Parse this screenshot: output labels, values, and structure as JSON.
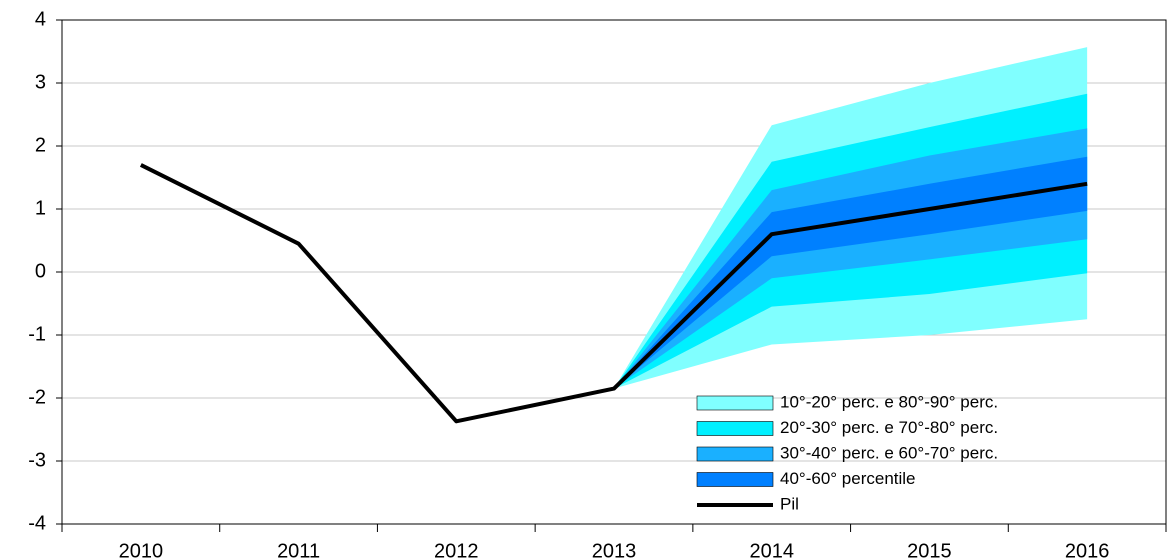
{
  "chart_data": {
    "type": "fan",
    "categories": [
      "2010",
      "2011",
      "2012",
      "2013",
      "2014",
      "2015",
      "2016"
    ],
    "ylim": [
      -4,
      4
    ],
    "yticks": [
      -4,
      -3,
      -2,
      -1,
      0,
      1,
      2,
      3,
      4
    ],
    "grid": true,
    "legend": "lower right",
    "series": [
      {
        "name": "10°-20° perc. e 80°-90° perc.",
        "color": "#80ffff",
        "kind": "band",
        "lower": [
          null,
          null,
          null,
          -1.85,
          -1.15,
          -1.0,
          -0.75
        ],
        "upper": [
          null,
          null,
          null,
          -1.85,
          2.33,
          3.0,
          3.57
        ]
      },
      {
        "name": "20°-30° perc. e 70°-80° perc.",
        "color": "#00f0ff",
        "kind": "band",
        "lower": [
          null,
          null,
          null,
          -1.85,
          -0.55,
          -0.35,
          -0.02
        ],
        "upper": [
          null,
          null,
          null,
          -1.85,
          1.75,
          2.3,
          2.83
        ]
      },
      {
        "name": "30°-40° perc. e 60°-70° perc.",
        "color": "#1ab0ff",
        "kind": "band",
        "lower": [
          null,
          null,
          null,
          -1.85,
          -0.1,
          0.2,
          0.52
        ],
        "upper": [
          null,
          null,
          null,
          -1.85,
          1.3,
          1.85,
          2.28
        ]
      },
      {
        "name": "40°-60° percentile",
        "color": "#0080ff",
        "kind": "band",
        "lower": [
          null,
          null,
          null,
          -1.85,
          0.25,
          0.6,
          0.97
        ],
        "upper": [
          null,
          null,
          null,
          -1.85,
          0.95,
          1.4,
          1.83
        ]
      },
      {
        "name": "Pil",
        "color": "#000000",
        "kind": "line",
        "values": [
          1.7,
          0.45,
          -2.37,
          -1.85,
          0.6,
          1.0,
          1.4
        ]
      }
    ]
  }
}
